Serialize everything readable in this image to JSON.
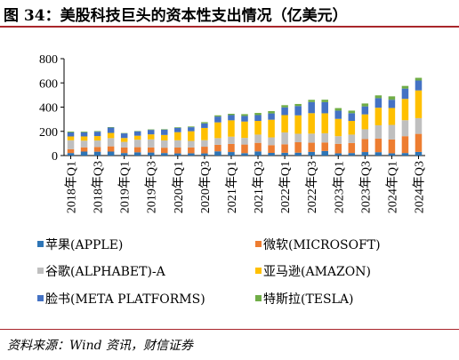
{
  "header": {
    "title": "图 34：美股科技巨头的资本性支出情况（亿美元）"
  },
  "footer": {
    "source": "资料来源：Wind 资讯，财信证券"
  },
  "chart_data": {
    "type": "bar",
    "stacked": true,
    "title": "图 34：美股科技巨头的资本性支出情况（亿美元）",
    "xlabel": "",
    "ylabel": "",
    "ylim": [
      0,
      800
    ],
    "yticks": [
      0,
      200,
      400,
      600,
      800
    ],
    "grid": false,
    "legend_position": "bottom",
    "categories": [
      "2018Q1",
      "2018Q2",
      "2018Q3",
      "2018Q4",
      "2019Q1",
      "2019Q2",
      "2019Q3",
      "2019Q4",
      "2020Q1",
      "2020Q2",
      "2020Q3",
      "2020Q4",
      "2021Q1",
      "2021Q2",
      "2021Q3",
      "2021Q4",
      "2022Q1",
      "2022Q2",
      "2022Q3",
      "2022Q4",
      "2023Q1",
      "2023Q2",
      "2023Q3",
      "2023Q4",
      "2024Q1",
      "2024Q2",
      "2024Q3"
    ],
    "xtick_labels": [
      "2018年Q1",
      "2018年Q3",
      "2019年Q1",
      "2019年Q3",
      "2020年Q1",
      "2020年Q3",
      "2021年Q1",
      "2021年Q3",
      "2022年Q1",
      "2022年Q3",
      "2023年Q1",
      "2023年Q3",
      "2024年Q1",
      "2024年Q3"
    ],
    "series": [
      {
        "name": "苹果(APPLE)",
        "color": "#2e75b6",
        "values": [
          21,
          33,
          32,
          33,
          21,
          27,
          25,
          21,
          18,
          19,
          18,
          35,
          29,
          20,
          34,
          22,
          23,
          24,
          30,
          38,
          19,
          21,
          29,
          28,
          19,
          21,
          30
        ]
      },
      {
        "name": "微软(MICROSOFT)",
        "color": "#ed7d31",
        "values": [
          32,
          35,
          39,
          43,
          46,
          42,
          42,
          44,
          48,
          48,
          55,
          54,
          67,
          71,
          71,
          64,
          70,
          86,
          76,
          70,
          78,
          83,
          107,
          112,
          114,
          139,
          149
        ]
      },
      {
        "name": "谷歌(ALPHABET)-A",
        "color": "#bfbfbf",
        "values": [
          73,
          55,
          53,
          68,
          46,
          62,
          67,
          60,
          60,
          54,
          54,
          55,
          60,
          55,
          68,
          64,
          98,
          70,
          75,
          76,
          63,
          69,
          81,
          110,
          120,
          132,
          130
        ]
      },
      {
        "name": "亚马逊(AMAZON)",
        "color": "#ffc000",
        "values": [
          32,
          35,
          37,
          43,
          32,
          33,
          41,
          45,
          67,
          80,
          101,
          130,
          135,
          135,
          113,
          146,
          143,
          152,
          169,
          165,
          143,
          113,
          123,
          145,
          140,
          176,
          229
        ]
      },
      {
        "name": "脸书(META PLATFORMS)",
        "color": "#4472c4",
        "values": [
          33,
          34,
          36,
          44,
          38,
          36,
          37,
          44,
          36,
          33,
          38,
          48,
          43,
          46,
          48,
          52,
          64,
          77,
          92,
          92,
          68,
          64,
          66,
          79,
          68,
          85,
          82
        ]
      },
      {
        "name": "特斯拉(TESLA)",
        "color": "#70ad47",
        "values": [
          7,
          6,
          5,
          4,
          3,
          3,
          4,
          4,
          5,
          6,
          10,
          10,
          11,
          15,
          18,
          19,
          18,
          17,
          18,
          20,
          21,
          21,
          24,
          23,
          28,
          22,
          22
        ]
      }
    ]
  }
}
